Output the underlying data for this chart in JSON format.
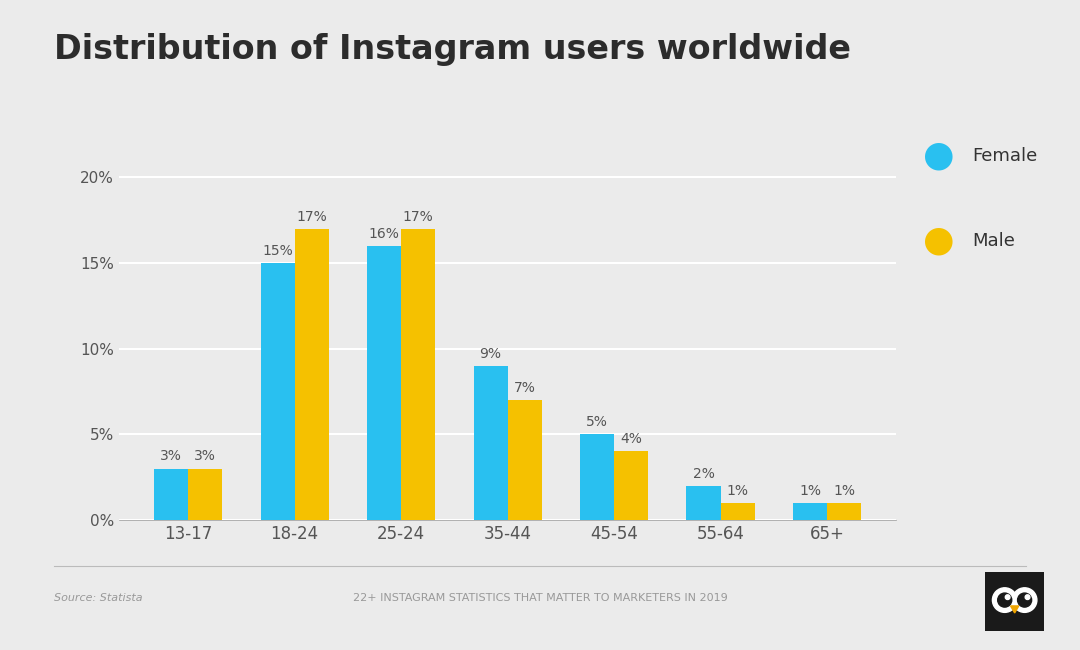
{
  "title": "Distribution of Instagram users worldwide",
  "categories": [
    "13-17",
    "18-24",
    "25-24",
    "35-44",
    "45-54",
    "55-64",
    "65+"
  ],
  "female_values": [
    3,
    15,
    16,
    9,
    5,
    2,
    1
  ],
  "male_values": [
    3,
    17,
    17,
    7,
    4,
    1,
    1
  ],
  "female_color": "#29C0F0",
  "male_color": "#F5C100",
  "background_color": "#EBEBEB",
  "title_fontsize": 24,
  "label_fontsize": 10,
  "bar_width": 0.32,
  "ylim": [
    0,
    22
  ],
  "yticks": [
    0,
    5,
    10,
    15,
    20
  ],
  "ytick_labels": [
    "0%",
    "5%",
    "10%",
    "15%",
    "20%"
  ],
  "footer_left": "Source: Statista",
  "footer_center": "22+ INSTAGRAM STATISTICS THAT MATTER TO MARKETERS IN 2019",
  "legend_female": "Female",
  "legend_male": "Male",
  "axis_color": "#999999",
  "label_color": "#555555",
  "grid_color": "#FFFFFF"
}
